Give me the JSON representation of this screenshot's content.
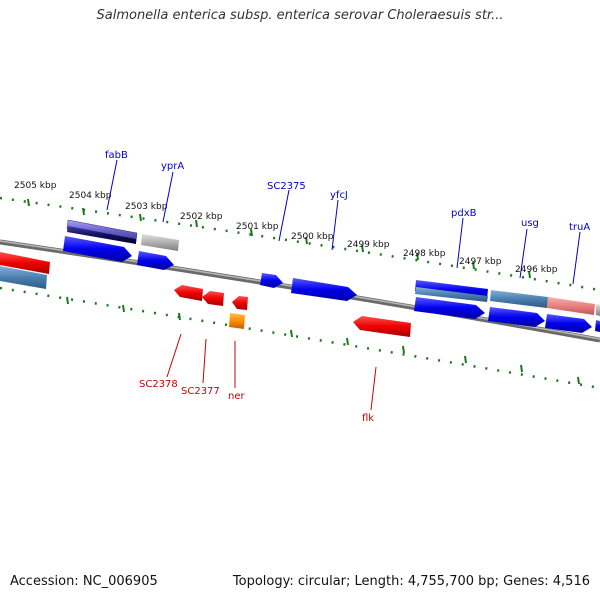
{
  "title": "Salmonella enterica subsp. enterica serovar Choleraesuis str...",
  "footer": {
    "accession": "Accession: NC_006905",
    "summary": "Topology: circular; Length: 4,755,700 bp; Genes: 4,516"
  },
  "scale_labels": [
    "2505 kbp",
    "2504 kbp",
    "2503 kbp",
    "2502 kbp",
    "2501 kbp",
    "2500 kbp",
    "2499 kbp",
    "2498 kbp",
    "2497 kbp",
    "2496 kbp"
  ],
  "forward_genes": [
    "fabB",
    "yprA",
    "SC2375",
    "yfcJ",
    "pdxB",
    "usg",
    "truA"
  ],
  "reverse_genes": [
    "SC2378",
    "SC2377",
    "ner",
    "flk"
  ],
  "colors": {
    "forward_strand": "#0000ee",
    "reverse_strand": "#ee0000",
    "backbone": "#888888",
    "ticks": "#1a7a1a",
    "steelblue": "#4a7fb0",
    "orange": "#ff8c00",
    "pink": "#e88080",
    "purple": "#6a60c8",
    "gray": "#b0b0b0"
  }
}
